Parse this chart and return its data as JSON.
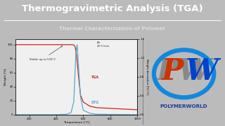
{
  "title": "Thermogravimetric Analysis (TGA)",
  "subtitle": "Thermal Characterization of Polymer",
  "title_bg": "#3a3a3a",
  "title_color": "#ffffff",
  "subtitle_color": "#dddddd",
  "body_bg": "#bbbbbb",
  "plot_bg": "#f0f0f0",
  "tga_color": "#cc2222",
  "dtg_color": "#55aacc",
  "annotation_text": "Stable up to 520°C",
  "air_text": "Air\n20°C/min",
  "xlabel": "Temperature [°C]",
  "ylabel_left": "Weight [%]",
  "ylabel_right": "Weight derivative [%/°C]",
  "tga_label": "TGA",
  "dtg_label": "DTG",
  "x_ticks": [
    200,
    400,
    600,
    800,
    1000
  ],
  "y_ticks_left": [
    0,
    20,
    40,
    60,
    80,
    100
  ],
  "y_ticks_right": [
    0.0,
    0.4,
    0.8,
    1.2,
    1.6
  ],
  "tga_x": [
    100,
    200,
    300,
    400,
    450,
    500,
    520,
    530,
    540,
    550,
    560,
    570,
    580,
    600,
    650,
    700,
    800,
    900,
    1000
  ],
  "tga_y": [
    100,
    100,
    100,
    100,
    100,
    100,
    100,
    99.5,
    97,
    85,
    65,
    45,
    28,
    18,
    12,
    10,
    9,
    8,
    7
  ],
  "dtg_x": [
    100,
    400,
    480,
    510,
    530,
    545,
    555,
    565,
    580,
    600,
    650,
    700,
    800,
    1000
  ],
  "dtg_y": [
    0,
    0,
    0.01,
    0.05,
    0.3,
    1.4,
    1.6,
    1.1,
    0.4,
    0.1,
    0.03,
    0.01,
    0.005,
    0.0
  ],
  "polymerworld_color": "#1a3a9a",
  "logo_ring_color": "#1188dd",
  "logo_ring_lw": 4.5
}
